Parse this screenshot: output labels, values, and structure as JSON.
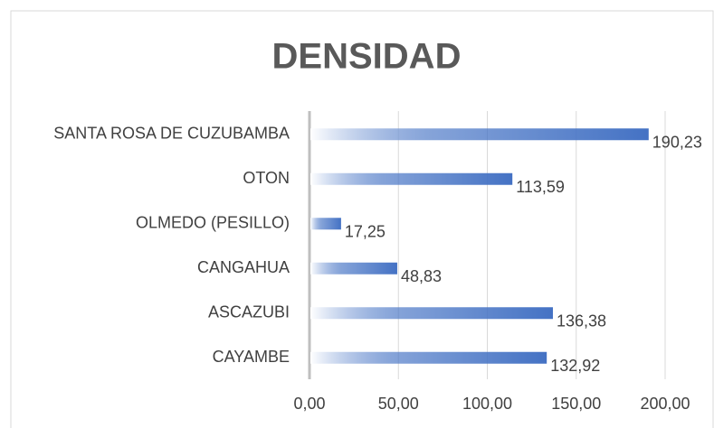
{
  "chart_data": {
    "type": "barh",
    "title": "DENSIDAD",
    "categories": [
      "SANTA ROSA DE CUZUBAMBA",
      "OTON",
      "OLMEDO (PESILLO)",
      "CANGAHUA",
      "ASCAZUBI",
      "CAYAMBE"
    ],
    "values": [
      190.23,
      113.59,
      17.25,
      48.83,
      136.38,
      132.92
    ],
    "value_labels": [
      "190,23",
      "113,59",
      "17,25",
      "48,83",
      "136,38",
      "132,92"
    ],
    "color": "#4472c4",
    "xlim": [
      0,
      200
    ],
    "xticks": [
      {
        "value": 0,
        "label": "0,00"
      },
      {
        "value": 50,
        "label": "50,00"
      },
      {
        "value": 100,
        "label": "100,00"
      },
      {
        "value": 150,
        "label": "150,00"
      },
      {
        "value": 200,
        "label": "200,00"
      }
    ],
    "grid": true
  }
}
